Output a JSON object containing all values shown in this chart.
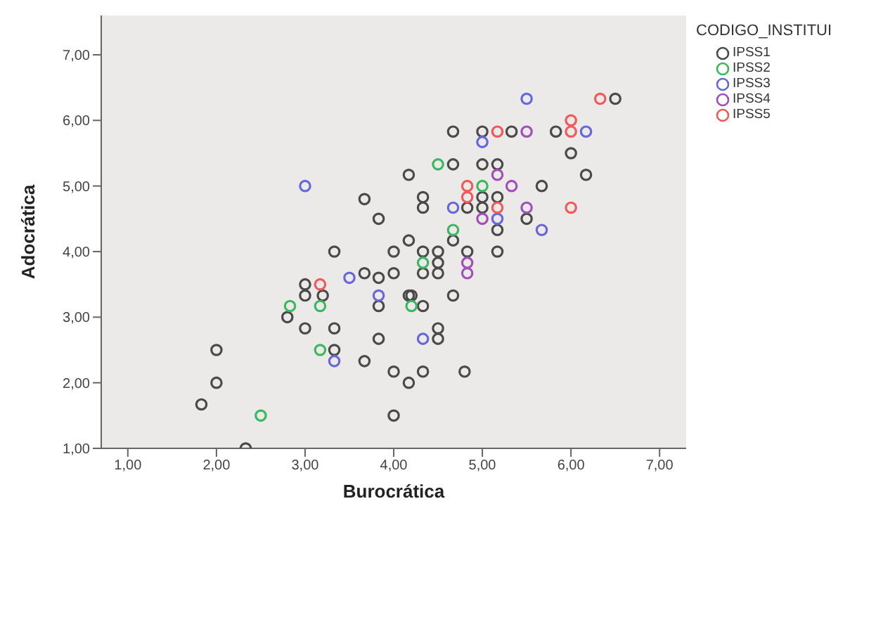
{
  "chart_data": {
    "type": "scatter",
    "xlabel": "Burocrática",
    "ylabel": "Adocrática",
    "legend_title": "CODIGO_INSTITUI",
    "legend": "top right",
    "marker": "circle",
    "grid": false,
    "xlim": [
      0.7,
      7.3
    ],
    "ylim": [
      1,
      7.6
    ],
    "xticks": [
      {
        "value": 1,
        "label": "1,00"
      },
      {
        "value": 2,
        "label": "2,00"
      },
      {
        "value": 3,
        "label": "3,00"
      },
      {
        "value": 4,
        "label": "4,00"
      },
      {
        "value": 5,
        "label": "5,00"
      },
      {
        "value": 6,
        "label": "6,00"
      },
      {
        "value": 7,
        "label": "7,00"
      }
    ],
    "yticks": [
      {
        "value": 1,
        "label": "1,00"
      },
      {
        "value": 2,
        "label": "2,00"
      },
      {
        "value": 3,
        "label": "3,00"
      },
      {
        "value": 4,
        "label": "4,00"
      },
      {
        "value": 5,
        "label": "5,00"
      },
      {
        "value": 6,
        "label": "6,00"
      },
      {
        "value": 7,
        "label": "7,00"
      }
    ],
    "series": [
      {
        "name": "IPSS1",
        "color": "#4a4a4a",
        "x": [
          6.5,
          4.67,
          5.0,
          5.33,
          5.83,
          6.0,
          4.67,
          5.0,
          5.17,
          4.17,
          6.17,
          5.67,
          4.33,
          5.0,
          5.17,
          3.67,
          4.33,
          4.83,
          5.0,
          3.83,
          5.5,
          5.17,
          4.17,
          4.67,
          3.33,
          4.0,
          4.33,
          4.5,
          4.83,
          5.17,
          4.5,
          3.67,
          4.0,
          4.33,
          4.5,
          3.83,
          3.0,
          3.0,
          3.2,
          4.17,
          4.2,
          4.67,
          3.83,
          4.33,
          2.8,
          3.0,
          3.33,
          4.5,
          3.83,
          4.5,
          2.0,
          3.33,
          3.67,
          4.0,
          4.33,
          4.8,
          2.0,
          4.17,
          1.83,
          4.0,
          2.33
        ],
        "values": [
          6.33,
          5.83,
          5.83,
          5.83,
          5.83,
          5.5,
          5.33,
          5.33,
          5.33,
          5.17,
          5.17,
          5.0,
          4.83,
          4.83,
          4.83,
          4.8,
          4.67,
          4.67,
          4.67,
          4.5,
          4.5,
          4.33,
          4.17,
          4.17,
          4.0,
          4.0,
          4.0,
          4.0,
          4.0,
          4.0,
          3.83,
          3.67,
          3.67,
          3.67,
          3.67,
          3.6,
          3.5,
          3.33,
          3.33,
          3.33,
          3.33,
          3.33,
          3.17,
          3.17,
          3.0,
          2.83,
          2.83,
          2.83,
          2.67,
          2.67,
          2.5,
          2.5,
          2.33,
          2.17,
          2.17,
          2.17,
          2.0,
          2.0,
          1.67,
          1.5,
          1.0
        ]
      },
      {
        "name": "IPSS2",
        "color": "#3cb860",
        "x": [
          4.5,
          5.0,
          4.67,
          4.33,
          2.83,
          3.17,
          4.2,
          3.17,
          2.5
        ],
        "values": [
          5.33,
          5.0,
          4.33,
          3.83,
          3.17,
          3.17,
          3.17,
          2.5,
          1.5
        ]
      },
      {
        "name": "IPSS3",
        "color": "#6868d8",
        "x": [
          5.5,
          6.17,
          5.0,
          3.0,
          4.67,
          5.17,
          5.67,
          3.5,
          3.83,
          4.33,
          3.33
        ],
        "values": [
          6.33,
          5.83,
          5.67,
          5.0,
          4.67,
          4.5,
          4.33,
          3.6,
          3.33,
          2.67,
          2.33
        ]
      },
      {
        "name": "IPSS4",
        "color": "#a050b8",
        "x": [
          5.5,
          5.17,
          5.33,
          5.5,
          5.0,
          4.83,
          4.83
        ],
        "values": [
          5.83,
          5.17,
          5.0,
          4.67,
          4.5,
          3.83,
          3.67
        ]
      },
      {
        "name": "IPSS5",
        "color": "#f05a5a",
        "x": [
          6.33,
          6.0,
          5.17,
          6.0,
          4.83,
          4.83,
          5.17,
          6.0,
          3.17
        ],
        "values": [
          6.33,
          6.0,
          5.83,
          5.83,
          5.0,
          4.83,
          4.67,
          4.67,
          3.5
        ]
      }
    ]
  }
}
